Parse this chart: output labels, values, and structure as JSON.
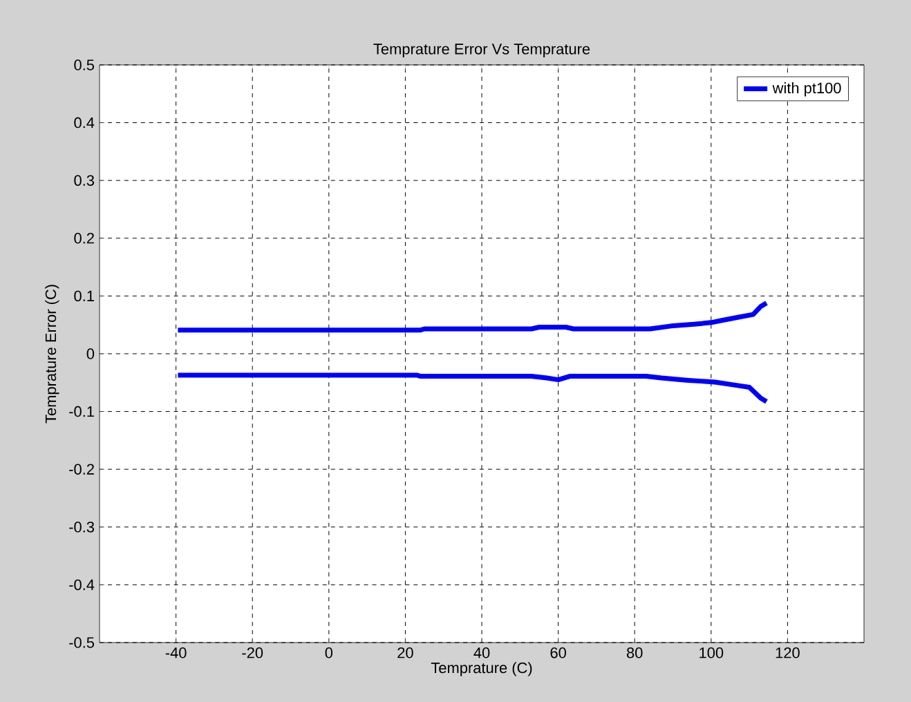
{
  "chart_data": {
    "type": "line",
    "title": "Temprature Error Vs Temprature",
    "xlabel": "Temprature (C)",
    "ylabel": "Temprature Error (C)",
    "xlim": [
      -60,
      140
    ],
    "xticks": [
      -40,
      -20,
      0,
      20,
      40,
      60,
      80,
      100,
      120
    ],
    "ylim": [
      -0.5,
      0.5
    ],
    "yticks": [
      -0.5,
      -0.4,
      -0.3,
      -0.2,
      -0.1,
      0,
      0.1,
      0.2,
      0.3,
      0.4,
      0.5
    ],
    "grid": true,
    "legend": "top right",
    "line_style": "solid",
    "marker": "none",
    "series": [
      {
        "name": "with pt100",
        "color": "#0000ff",
        "x": [
          -39.5,
          24,
          25,
          53,
          55,
          62,
          64,
          84,
          89.5,
          95.5,
          100,
          103,
          107,
          111,
          113,
          114.5
        ],
        "values": [
          0.041,
          0.041,
          0.043,
          0.043,
          0.046,
          0.046,
          0.043,
          0.043,
          0.048,
          0.051,
          0.054,
          0.058,
          0.063,
          0.068,
          0.082,
          0.088
        ]
      },
      {
        "color": "#0000ff",
        "x": [
          -39.5,
          23,
          24,
          53,
          57,
          60,
          63,
          83,
          87,
          94,
          101,
          106,
          110,
          113,
          114.5
        ],
        "values": [
          -0.037,
          -0.037,
          -0.039,
          -0.039,
          -0.042,
          -0.045,
          -0.039,
          -0.039,
          -0.042,
          -0.046,
          -0.049,
          -0.054,
          -0.058,
          -0.077,
          -0.083
        ]
      }
    ]
  }
}
